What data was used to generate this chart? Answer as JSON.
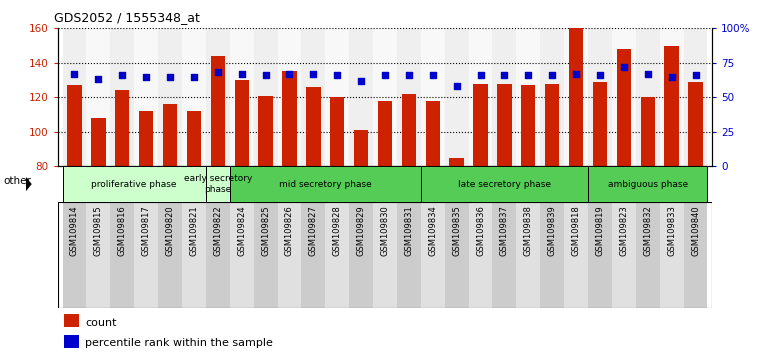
{
  "title": "GDS2052 / 1555348_at",
  "samples": [
    "GSM109814",
    "GSM109815",
    "GSM109816",
    "GSM109817",
    "GSM109820",
    "GSM109821",
    "GSM109822",
    "GSM109824",
    "GSM109825",
    "GSM109826",
    "GSM109827",
    "GSM109828",
    "GSM109829",
    "GSM109830",
    "GSM109831",
    "GSM109834",
    "GSM109835",
    "GSM109836",
    "GSM109837",
    "GSM109838",
    "GSM109839",
    "GSM109818",
    "GSM109819",
    "GSM109823",
    "GSM109832",
    "GSM109833",
    "GSM109840"
  ],
  "counts": [
    127,
    108,
    124,
    112,
    116,
    112,
    144,
    130,
    121,
    135,
    126,
    120,
    101,
    118,
    122,
    118,
    85,
    128,
    128,
    127,
    128,
    160,
    129,
    148,
    120,
    150,
    129
  ],
  "percentiles": [
    67,
    63,
    66,
    65,
    65,
    65,
    68,
    67,
    66,
    67,
    67,
    66,
    62,
    66,
    66,
    66,
    58,
    66,
    66,
    66,
    66,
    67,
    66,
    72,
    67,
    65,
    66
  ],
  "bar_color": "#cc2200",
  "dot_color": "#0000cc",
  "ylim_left": [
    80,
    160
  ],
  "ylim_right": [
    0,
    100
  ],
  "yticks_left": [
    80,
    100,
    120,
    140,
    160
  ],
  "yticks_right": [
    0,
    25,
    50,
    75,
    100
  ],
  "ytick_labels_right": [
    "0",
    "25",
    "50",
    "75",
    "100%"
  ],
  "group_defs": [
    {
      "label": "proliferative phase",
      "start": 0,
      "end": 5,
      "color": "#ccffcc"
    },
    {
      "label": "early secretory\nphase",
      "start": 6,
      "end": 6,
      "color": "#ccffcc"
    },
    {
      "label": "mid secretory phase",
      "start": 7,
      "end": 14,
      "color": "#55cc55"
    },
    {
      "label": "late secretory phase",
      "start": 15,
      "end": 21,
      "color": "#55cc55"
    },
    {
      "label": "ambiguous phase",
      "start": 22,
      "end": 26,
      "color": "#55cc55"
    }
  ],
  "legend_count_label": "count",
  "legend_pct_label": "percentile rank within the sample",
  "other_label": "other",
  "col_bg_even": "#cccccc",
  "col_bg_odd": "#e8e8e8"
}
